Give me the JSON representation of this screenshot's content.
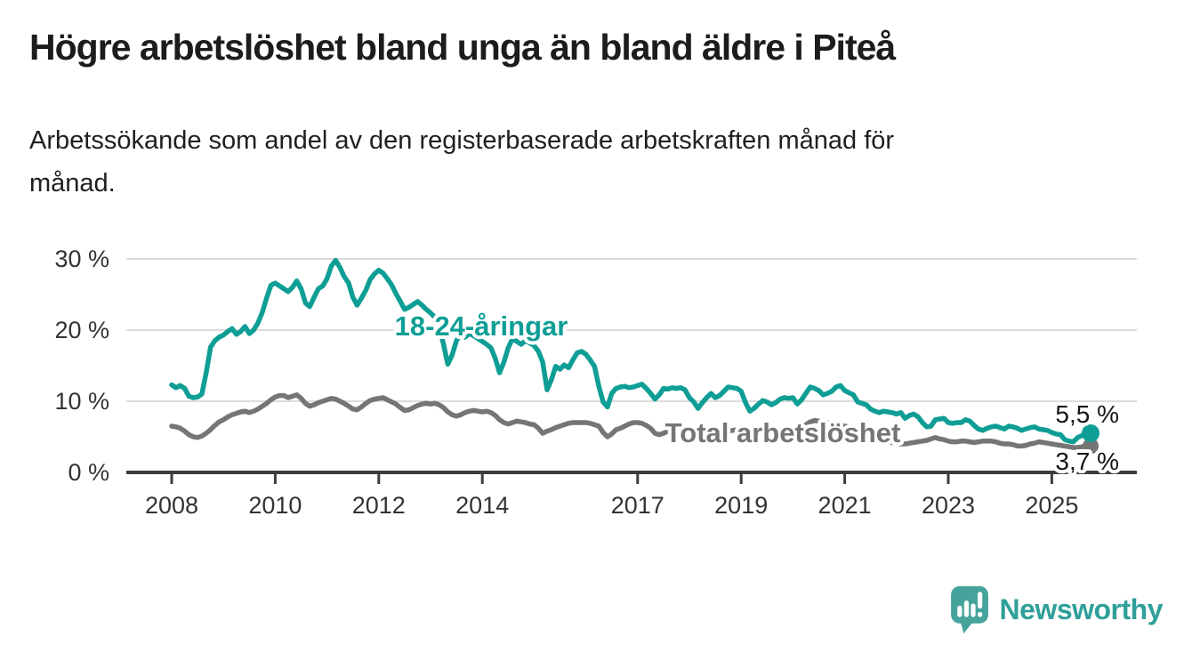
{
  "header": {
    "title": "Högre arbetslöshet bland unga än bland äldre i Piteå",
    "subtitle": "Arbetssökande som andel av den registerbaserade arbetskraften månad för månad.",
    "subtitle_lines": [
      "Arbetssökande som andel av den registerbaserade arbetskraften månad för",
      "månad."
    ]
  },
  "chart_data": {
    "type": "line",
    "title": "Högre arbetslöshet bland unga än bland äldre i Piteå",
    "subtitle": "Arbetssökande som andel av den registerbaserade arbetskraften månad för månad.",
    "unit": "%",
    "x_start": "2008-01",
    "x_end": "2025-10",
    "x_resolution": "monthly",
    "ylim": [
      0,
      30
    ],
    "grid": true,
    "legend": "inline-labels",
    "yticks": [
      {
        "value": 0,
        "label": "0 %"
      },
      {
        "value": 10,
        "label": "10 %"
      },
      {
        "value": 20,
        "label": "20 %"
      },
      {
        "value": 30,
        "label": "30 %"
      }
    ],
    "xticks": [
      {
        "year": 2008,
        "label": "2008"
      },
      {
        "year": 2010,
        "label": "2010"
      },
      {
        "year": 2012,
        "label": "2012"
      },
      {
        "year": 2014,
        "label": "2014"
      },
      {
        "year": 2017,
        "label": "2017"
      },
      {
        "year": 2019,
        "label": "2019"
      },
      {
        "year": 2021,
        "label": "2021"
      },
      {
        "year": 2023,
        "label": "2023"
      },
      {
        "year": 2025,
        "label": "2025"
      }
    ],
    "series": [
      {
        "name": "18-24-åringar",
        "color": "#0f9e95",
        "end_label": "5,5 %",
        "end_value": 5.5,
        "values": [
          12.3,
          11.9,
          12.2,
          11.8,
          10.7,
          10.5,
          10.6,
          11.0,
          14.0,
          17.6,
          18.5,
          19.0,
          19.3,
          19.8,
          20.2,
          19.4,
          19.8,
          20.5,
          19.5,
          20.0,
          21.0,
          22.5,
          24.5,
          26.3,
          26.6,
          26.2,
          25.8,
          25.4,
          26.0,
          26.9,
          25.8,
          23.8,
          23.3,
          24.6,
          25.8,
          26.2,
          27.2,
          29.0,
          29.8,
          28.8,
          27.5,
          26.6,
          24.6,
          23.5,
          24.5,
          25.6,
          27.1,
          27.9,
          28.4,
          28.0,
          27.2,
          26.3,
          25.1,
          24.0,
          22.9,
          23.2,
          23.6,
          24.0,
          23.5,
          22.9,
          22.4,
          21.8,
          20.5,
          18.0,
          15.2,
          16.5,
          18.5,
          19.5,
          19.0,
          19.5,
          19.2,
          18.8,
          18.4,
          18.0,
          17.5,
          16.0,
          14.0,
          15.5,
          17.5,
          18.8,
          18.4,
          18.0,
          18.5,
          18.2,
          17.8,
          17.0,
          15.5,
          11.6,
          13.0,
          14.9,
          14.5,
          15.1,
          14.7,
          15.8,
          16.8,
          17.0,
          16.6,
          15.8,
          14.9,
          12.1,
          9.9,
          9.2,
          11.1,
          11.8,
          12.0,
          12.1,
          11.9,
          12.0,
          12.2,
          12.4,
          11.8,
          11.1,
          10.3,
          10.9,
          11.8,
          11.7,
          11.9,
          11.8,
          11.9,
          11.6,
          10.5,
          9.9,
          9.0,
          9.8,
          10.5,
          11.1,
          10.5,
          10.8,
          11.4,
          12.0,
          11.9,
          11.8,
          11.4,
          9.8,
          8.6,
          9.0,
          9.6,
          10.1,
          9.9,
          9.5,
          9.8,
          10.3,
          10.5,
          10.4,
          10.5,
          9.6,
          10.2,
          11.1,
          12.0,
          11.8,
          11.5,
          10.9,
          11.1,
          11.4,
          12.0,
          12.2,
          11.5,
          11.2,
          10.9,
          9.9,
          9.7,
          9.5,
          8.9,
          8.6,
          8.4,
          8.6,
          8.5,
          8.4,
          8.2,
          8.4,
          7.6,
          8.0,
          8.2,
          7.8,
          7.0,
          6.4,
          6.5,
          7.4,
          7.5,
          7.6,
          7.0,
          6.9,
          7.0,
          7.0,
          7.4,
          7.2,
          6.6,
          6.1,
          5.9,
          6.2,
          6.4,
          6.5,
          6.3,
          6.1,
          6.5,
          6.4,
          6.2,
          5.9,
          6.1,
          6.3,
          6.4,
          6.1,
          6.0,
          5.9,
          5.6,
          5.4,
          5.3,
          4.6,
          4.4,
          4.3,
          4.9,
          5.2,
          5.6,
          5.5
        ]
      },
      {
        "name": "Total arbetslöshet",
        "color": "#757575",
        "end_label": "3,7 %",
        "end_value": 3.7,
        "values": [
          6.5,
          6.4,
          6.2,
          5.8,
          5.3,
          5.0,
          4.9,
          5.1,
          5.5,
          6.0,
          6.6,
          7.1,
          7.4,
          7.8,
          8.1,
          8.3,
          8.5,
          8.6,
          8.4,
          8.6,
          8.9,
          9.3,
          9.7,
          10.2,
          10.6,
          10.8,
          10.8,
          10.5,
          10.7,
          10.9,
          10.4,
          9.7,
          9.3,
          9.5,
          9.8,
          10.0,
          10.2,
          10.4,
          10.3,
          10.0,
          9.7,
          9.3,
          8.9,
          8.8,
          9.2,
          9.7,
          10.1,
          10.3,
          10.4,
          10.5,
          10.2,
          9.9,
          9.6,
          9.1,
          8.7,
          8.8,
          9.1,
          9.4,
          9.6,
          9.7,
          9.6,
          9.7,
          9.5,
          9.1,
          8.5,
          8.1,
          7.9,
          8.1,
          8.4,
          8.6,
          8.7,
          8.6,
          8.5,
          8.6,
          8.4,
          8.0,
          7.4,
          7.0,
          6.8,
          7.0,
          7.2,
          7.1,
          7.0,
          6.8,
          6.7,
          6.2,
          5.5,
          5.8,
          6.0,
          6.3,
          6.5,
          6.7,
          6.9,
          7.0,
          7.0,
          7.0,
          7.0,
          6.9,
          6.7,
          6.5,
          5.6,
          5.0,
          5.4,
          6.0,
          6.2,
          6.5,
          6.8,
          7.0,
          7.0,
          6.9,
          6.6,
          6.2,
          5.5,
          5.3,
          5.5,
          5.8,
          6.0,
          6.2,
          6.3,
          6.4,
          6.3,
          6.2,
          6.0,
          5.8,
          5.6,
          5.4,
          5.3,
          5.5,
          5.7,
          5.8,
          5.9,
          6.0,
          5.9,
          5.8,
          5.6,
          5.5,
          5.4,
          5.5,
          5.4,
          5.5,
          5.6,
          5.7,
          5.8,
          5.9,
          5.9,
          5.8,
          6.1,
          6.7,
          7.1,
          7.3,
          7.2,
          7.1,
          7.0,
          6.8,
          6.7,
          6.6,
          6.5,
          6.4,
          6.2,
          5.9,
          5.6,
          5.3,
          5.0,
          4.8,
          4.6,
          4.4,
          4.3,
          4.2,
          4.1,
          4.0,
          4.0,
          4.1,
          4.2,
          4.3,
          4.4,
          4.5,
          4.7,
          4.9,
          4.7,
          4.6,
          4.4,
          4.3,
          4.3,
          4.4,
          4.4,
          4.3,
          4.2,
          4.3,
          4.4,
          4.4,
          4.4,
          4.3,
          4.1,
          4.0,
          4.0,
          3.9,
          3.7,
          3.7,
          3.8,
          4.0,
          4.1,
          4.3,
          4.2,
          4.1,
          4.0,
          3.9,
          3.8,
          3.7,
          3.6,
          3.5,
          3.5,
          3.6,
          3.7,
          3.7
        ]
      }
    ],
    "colors": {
      "accent_teal": "#0f9e95",
      "series_gray": "#757575",
      "axis_dark": "#3d3d3d",
      "gridline": "#dcdcdc"
    }
  },
  "footer": {
    "brand": "Newsworthy",
    "brand_color": "#2f9f99",
    "logo_color": "#46a39b",
    "logo_icon": "speech-bubble-bar-chart-exclamation"
  }
}
